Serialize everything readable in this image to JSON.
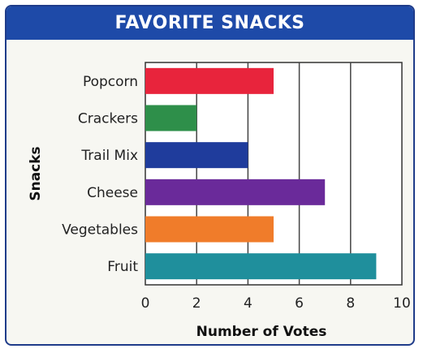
{
  "chart_data": {
    "type": "bar",
    "orientation": "horizontal",
    "title": "FAVORITE SNACKS",
    "xlabel": "Number of Votes",
    "ylabel": "Snacks",
    "categories": [
      "Popcorn",
      "Crackers",
      "Trail Mix",
      "Cheese",
      "Vegetables",
      "Fruit"
    ],
    "values": [
      5,
      2,
      4,
      7,
      5,
      9
    ],
    "bar_colors": [
      "#e8243c",
      "#2e8f4a",
      "#1f3c9c",
      "#6a2a9a",
      "#f07c2a",
      "#1f8f9c"
    ],
    "xlim": [
      0,
      10
    ],
    "xticks": [
      0,
      2,
      4,
      6,
      8,
      10
    ],
    "grid": true,
    "legend": "none"
  },
  "colors": {
    "title_bar": "#1e4aa8",
    "frame_border": "#1f3c8a",
    "background": "#f7f7f2"
  }
}
